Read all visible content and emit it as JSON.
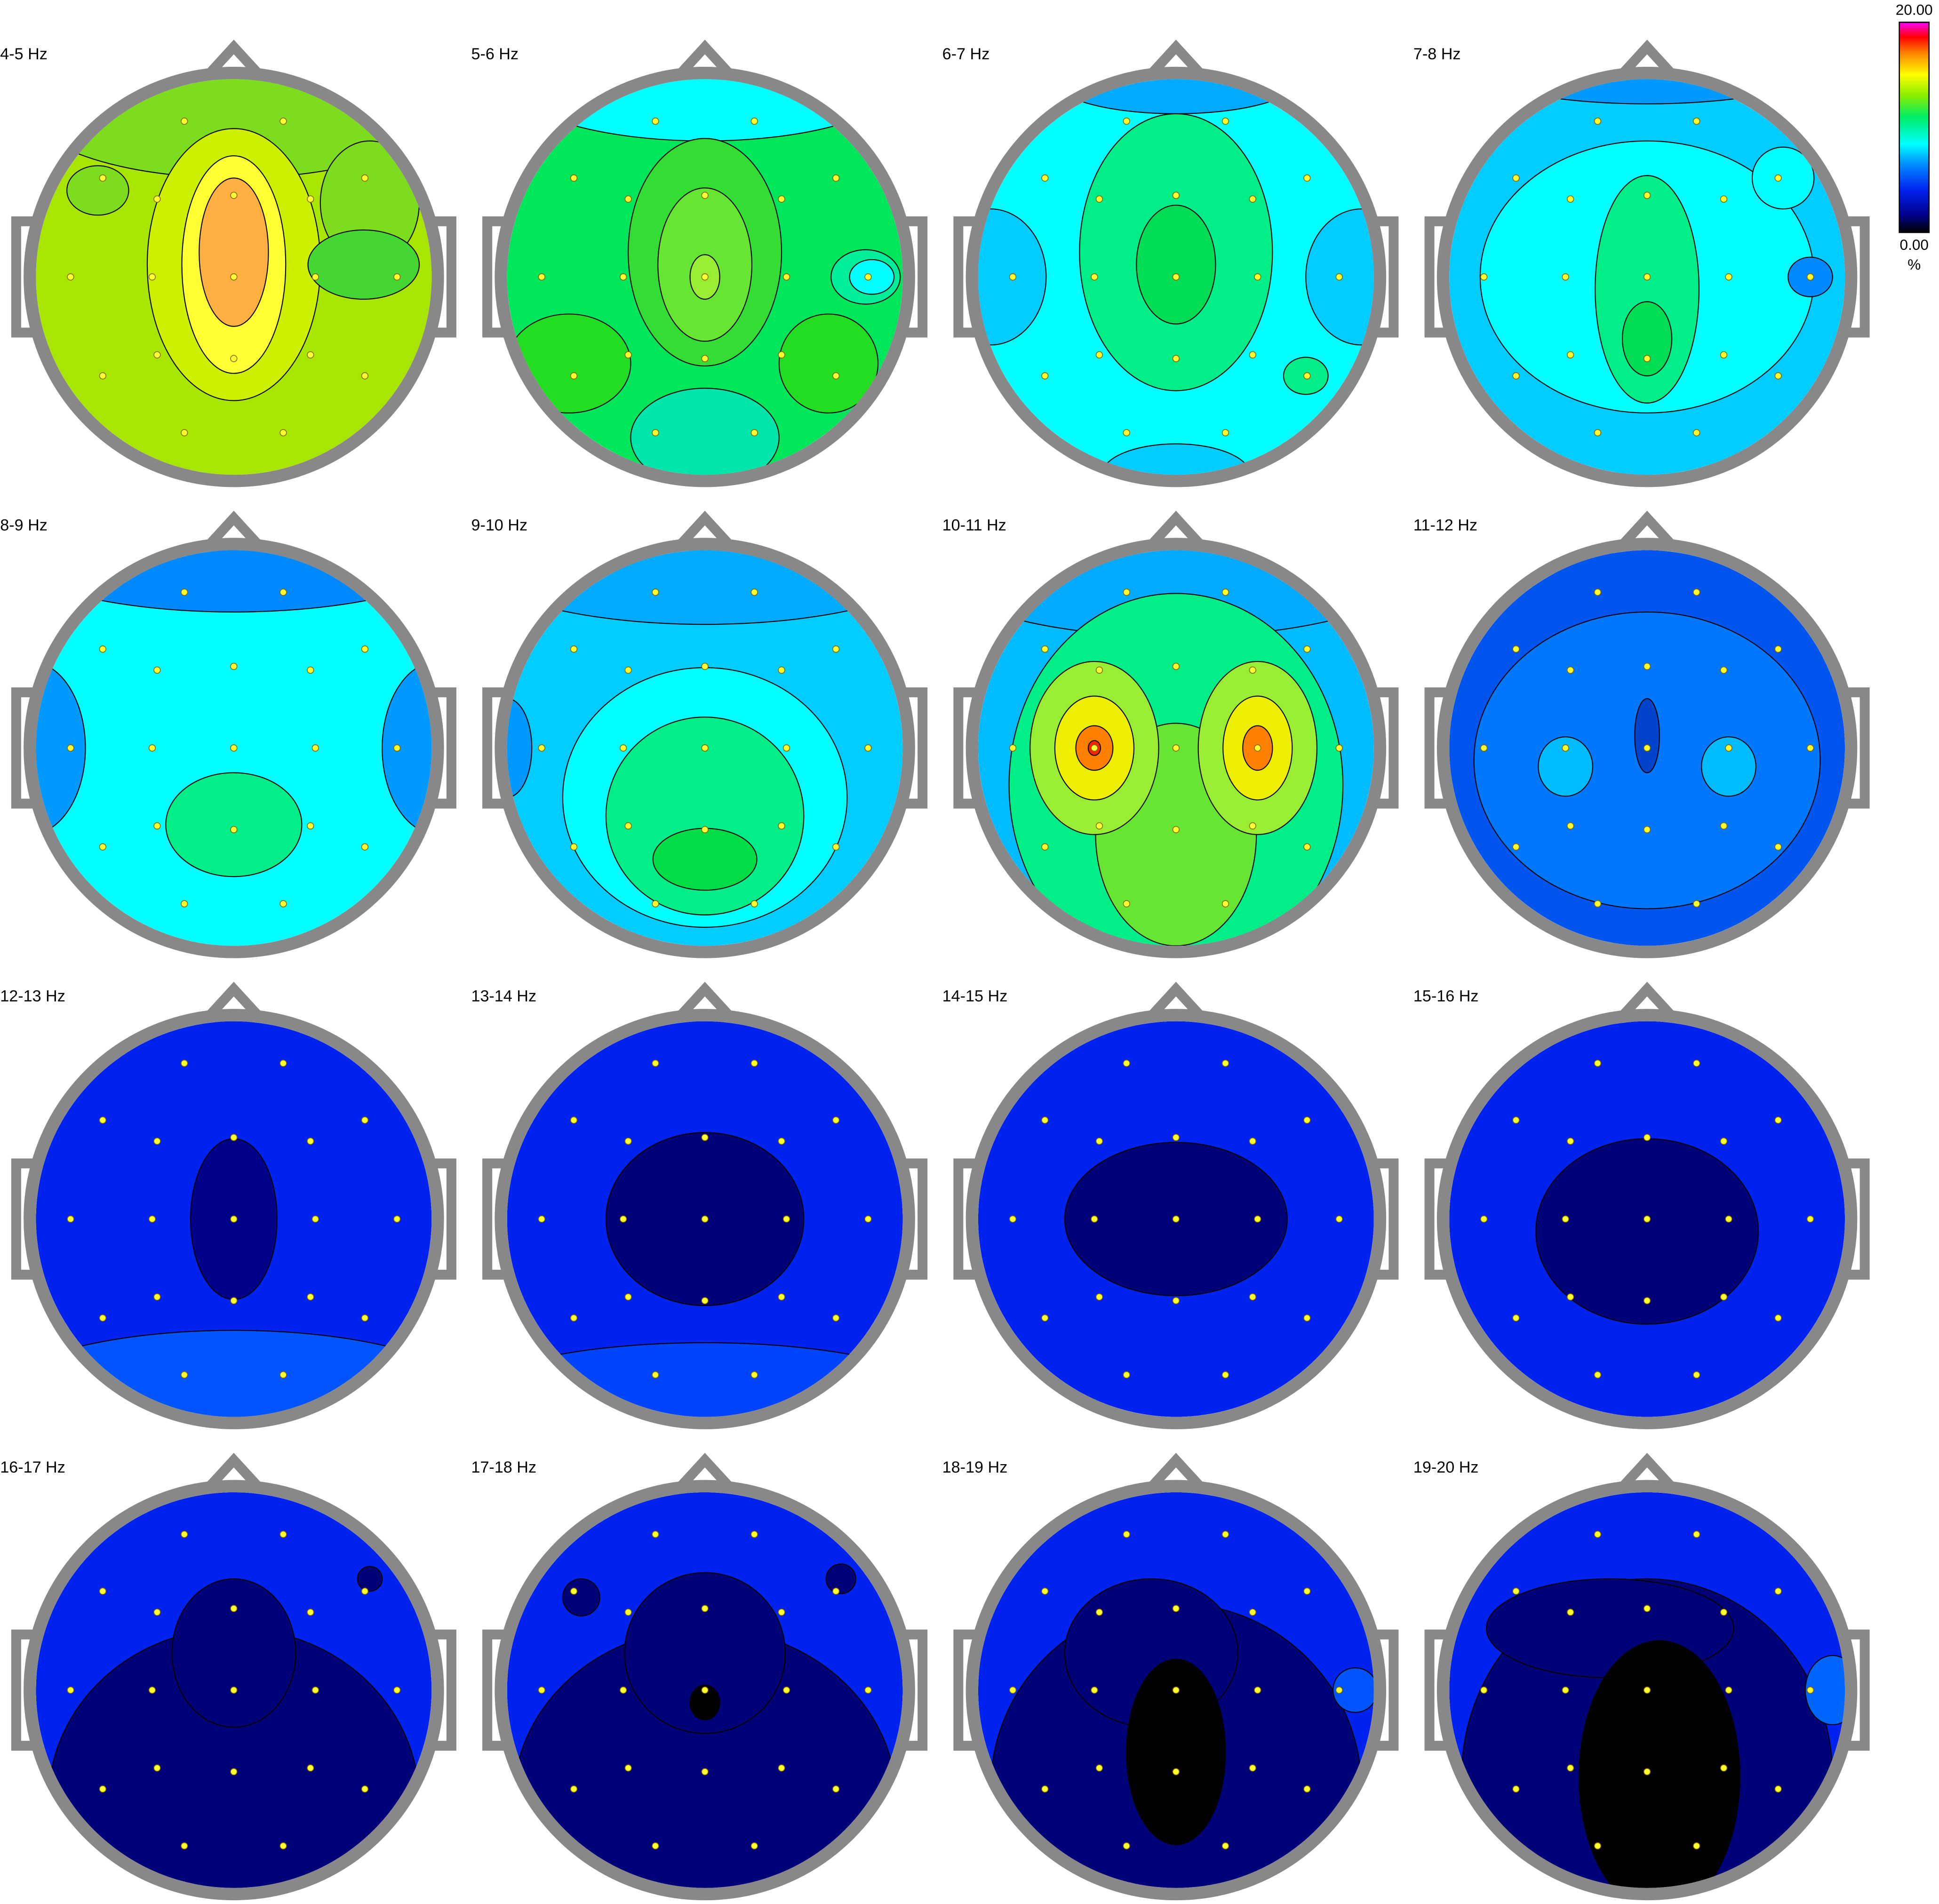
{
  "panels": [
    {
      "label": "4-5 Hz"
    },
    {
      "label": "5-6 Hz"
    },
    {
      "label": "6-7 Hz"
    },
    {
      "label": "7-8 Hz"
    },
    {
      "label": "8-9 Hz"
    },
    {
      "label": "9-10 Hz"
    },
    {
      "label": "10-11 Hz"
    },
    {
      "label": "11-12 Hz"
    },
    {
      "label": "12-13 Hz"
    },
    {
      "label": "13-14 Hz"
    },
    {
      "label": "14-15 Hz"
    },
    {
      "label": "15-16 Hz"
    },
    {
      "label": "16-17 Hz"
    },
    {
      "label": "17-18 Hz"
    },
    {
      "label": "18-19 Hz"
    },
    {
      "label": "19-20 Hz"
    }
  ],
  "colorbar": {
    "max_label": "20.00",
    "min_label": "0.00",
    "unit": "%"
  }
}
